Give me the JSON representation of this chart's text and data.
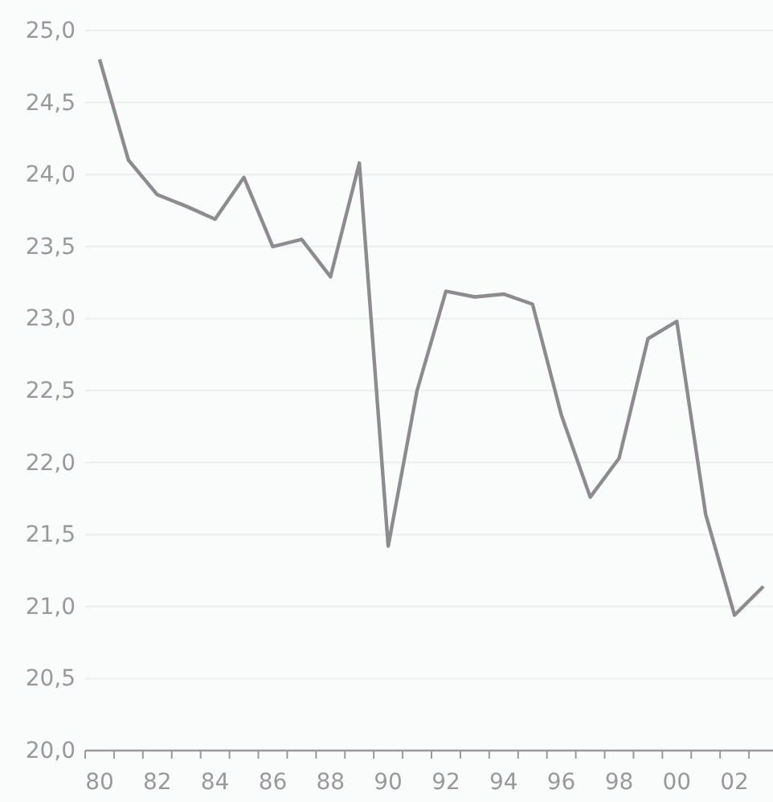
{
  "chart_data": {
    "type": "line",
    "categories": [
      "80",
      null,
      "82",
      null,
      "84",
      null,
      "86",
      null,
      "88",
      null,
      "90",
      null,
      "92",
      null,
      "94",
      null,
      "96",
      null,
      "98",
      null,
      "00",
      null,
      "02",
      null
    ],
    "series": [
      {
        "color": "#8d8b8f",
        "values": [
          24.8,
          24.1,
          23.86,
          23.78,
          23.69,
          23.98,
          23.5,
          23.55,
          23.29,
          24.08,
          21.42,
          22.5,
          23.19,
          23.15,
          23.17,
          23.1,
          22.33,
          21.76,
          22.03,
          22.86,
          22.98,
          21.64,
          20.94,
          21.14
        ]
      }
    ],
    "ylim": [
      20,
      25
    ],
    "yticks": [
      {
        "value": 20,
        "label": "20,0"
      },
      {
        "value": 20.5,
        "label": "20,5"
      },
      {
        "value": 21,
        "label": "21,0"
      },
      {
        "value": 21.5,
        "label": "21,5"
      },
      {
        "value": 22,
        "label": "22,0"
      },
      {
        "value": 22.5,
        "label": "22,5"
      },
      {
        "value": 23,
        "label": "23,0"
      },
      {
        "value": 23.5,
        "label": "23,5"
      },
      {
        "value": 24,
        "label": "24,0"
      },
      {
        "value": 24.5,
        "label": "24,5"
      },
      {
        "value": 25,
        "label": "25,0"
      }
    ],
    "grid": "y",
    "line_style": "solid"
  }
}
